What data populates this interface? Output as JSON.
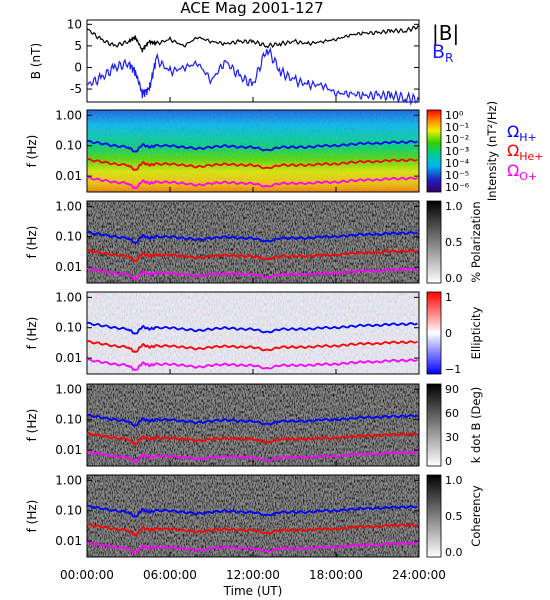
{
  "title": "ACE Mag 2001-127",
  "colors": {
    "b_total": "#000000",
    "b_radial": "#1a1aff",
    "h_plus": "#0000ff",
    "he_plus": "#ff0000",
    "o_plus": "#ff00ff"
  },
  "chart_data": [
    {
      "type": "line",
      "panel": "magnetic-field",
      "ylabel": "B (nT)",
      "yticks": [
        "10",
        "5",
        "0",
        "-5"
      ],
      "ylim": [
        -8,
        11
      ],
      "legend": {
        "total": "|B|",
        "radial_main": "B",
        "radial_sub": "R"
      },
      "x_hours": [
        0,
        1,
        2,
        3,
        3.5,
        4,
        4.5,
        5,
        6,
        7,
        8,
        9,
        10,
        11,
        12,
        13,
        14,
        15,
        16,
        17,
        18,
        19,
        20,
        21,
        22,
        23,
        24
      ],
      "series": [
        {
          "name": "|B|",
          "values": [
            9,
            6.5,
            5,
            6,
            7,
            4,
            6,
            5.5,
            6.5,
            5,
            7,
            6,
            5.5,
            6,
            6,
            5,
            5.5,
            6,
            5.5,
            6,
            6.5,
            7.5,
            8,
            8,
            8.5,
            8.5,
            9.5
          ]
        },
        {
          "name": "B_R",
          "values": [
            -4,
            -2.5,
            0,
            1,
            -1,
            -6,
            -5,
            2,
            -1,
            0,
            1,
            -3,
            1.5,
            -2,
            -4,
            4.5,
            -1,
            -3,
            -4,
            -4,
            -6,
            -6,
            -6.5,
            -6.5,
            -6.5,
            -7,
            -7.5
          ]
        }
      ]
    },
    {
      "type": "heatmap",
      "panel": "intensity",
      "ylabel": "f (Hz)",
      "yticks": [
        "1.00",
        "0.10",
        "0.01"
      ],
      "colorbar_label": "Intensity (nT²/Hz)",
      "colorbar_ticks": [
        "10⁰",
        "10⁻¹",
        "10⁻²",
        "10⁻³",
        "10⁻⁴",
        "10⁻⁵",
        "10⁻⁶"
      ],
      "gyro_labels": [
        {
          "main": "Ω",
          "sub": "H+"
        },
        {
          "main": "Ω",
          "sub": "He+"
        },
        {
          "main": "Ω",
          "sub": "O+"
        }
      ]
    },
    {
      "type": "heatmap",
      "panel": "polarization",
      "ylabel": "f (Hz)",
      "yticks": [
        "1.00",
        "0.10",
        "0.01"
      ],
      "colorbar_label": "% Polarization",
      "colorbar_ticks": [
        "1.0",
        "0.5",
        "0.0"
      ]
    },
    {
      "type": "heatmap",
      "panel": "ellipticity",
      "ylabel": "f (Hz)",
      "yticks": [
        "1.00",
        "0.10",
        "0.01"
      ],
      "colorbar_label": "Ellipticity",
      "colorbar_ticks": [
        "1",
        "0",
        "−1"
      ]
    },
    {
      "type": "heatmap",
      "panel": "kdotb",
      "ylabel": "f (Hz)",
      "yticks": [
        "1.00",
        "0.10",
        "0.01"
      ],
      "colorbar_label": "k dot B (Deg)",
      "colorbar_ticks": [
        "90",
        "60",
        "30",
        "0"
      ]
    },
    {
      "type": "heatmap",
      "panel": "coherency",
      "ylabel": "f (Hz)",
      "yticks": [
        "1.00",
        "0.10",
        "0.01"
      ],
      "colorbar_label": "Coherency",
      "colorbar_ticks": [
        "1.0",
        "0.5",
        "0.0"
      ]
    }
  ],
  "gyrofrequency_lines": {
    "x_hours": [
      0,
      1,
      2,
      3,
      3.5,
      4,
      4.5,
      5,
      6,
      7,
      8,
      9,
      10,
      11,
      12,
      13,
      14,
      15,
      16,
      17,
      18,
      19,
      20,
      21,
      22,
      23,
      24
    ],
    "h_plus_hz": [
      0.14,
      0.12,
      0.1,
      0.09,
      0.06,
      0.11,
      0.09,
      0.1,
      0.1,
      0.09,
      0.08,
      0.09,
      0.1,
      0.09,
      0.09,
      0.07,
      0.09,
      0.09,
      0.09,
      0.1,
      0.1,
      0.11,
      0.12,
      0.12,
      0.13,
      0.13,
      0.14
    ],
    "he_plus_hz": [
      0.035,
      0.03,
      0.025,
      0.023,
      0.015,
      0.028,
      0.023,
      0.025,
      0.025,
      0.023,
      0.02,
      0.023,
      0.025,
      0.023,
      0.023,
      0.018,
      0.023,
      0.023,
      0.023,
      0.025,
      0.025,
      0.028,
      0.03,
      0.03,
      0.033,
      0.033,
      0.035
    ],
    "o_plus_hz": [
      0.0088,
      0.0075,
      0.0063,
      0.0058,
      0.0038,
      0.007,
      0.0058,
      0.0063,
      0.0063,
      0.0058,
      0.005,
      0.0058,
      0.0063,
      0.0058,
      0.0058,
      0.0045,
      0.0058,
      0.0058,
      0.0058,
      0.0063,
      0.0063,
      0.007,
      0.0075,
      0.0075,
      0.0083,
      0.0083,
      0.0088
    ]
  },
  "x_axis": {
    "label": "Time (UT)",
    "ticks": [
      "00:00:00",
      "06:00:00",
      "12:00:00",
      "18:00:00",
      "24:00:00"
    ],
    "range_hours": [
      0,
      24
    ]
  }
}
